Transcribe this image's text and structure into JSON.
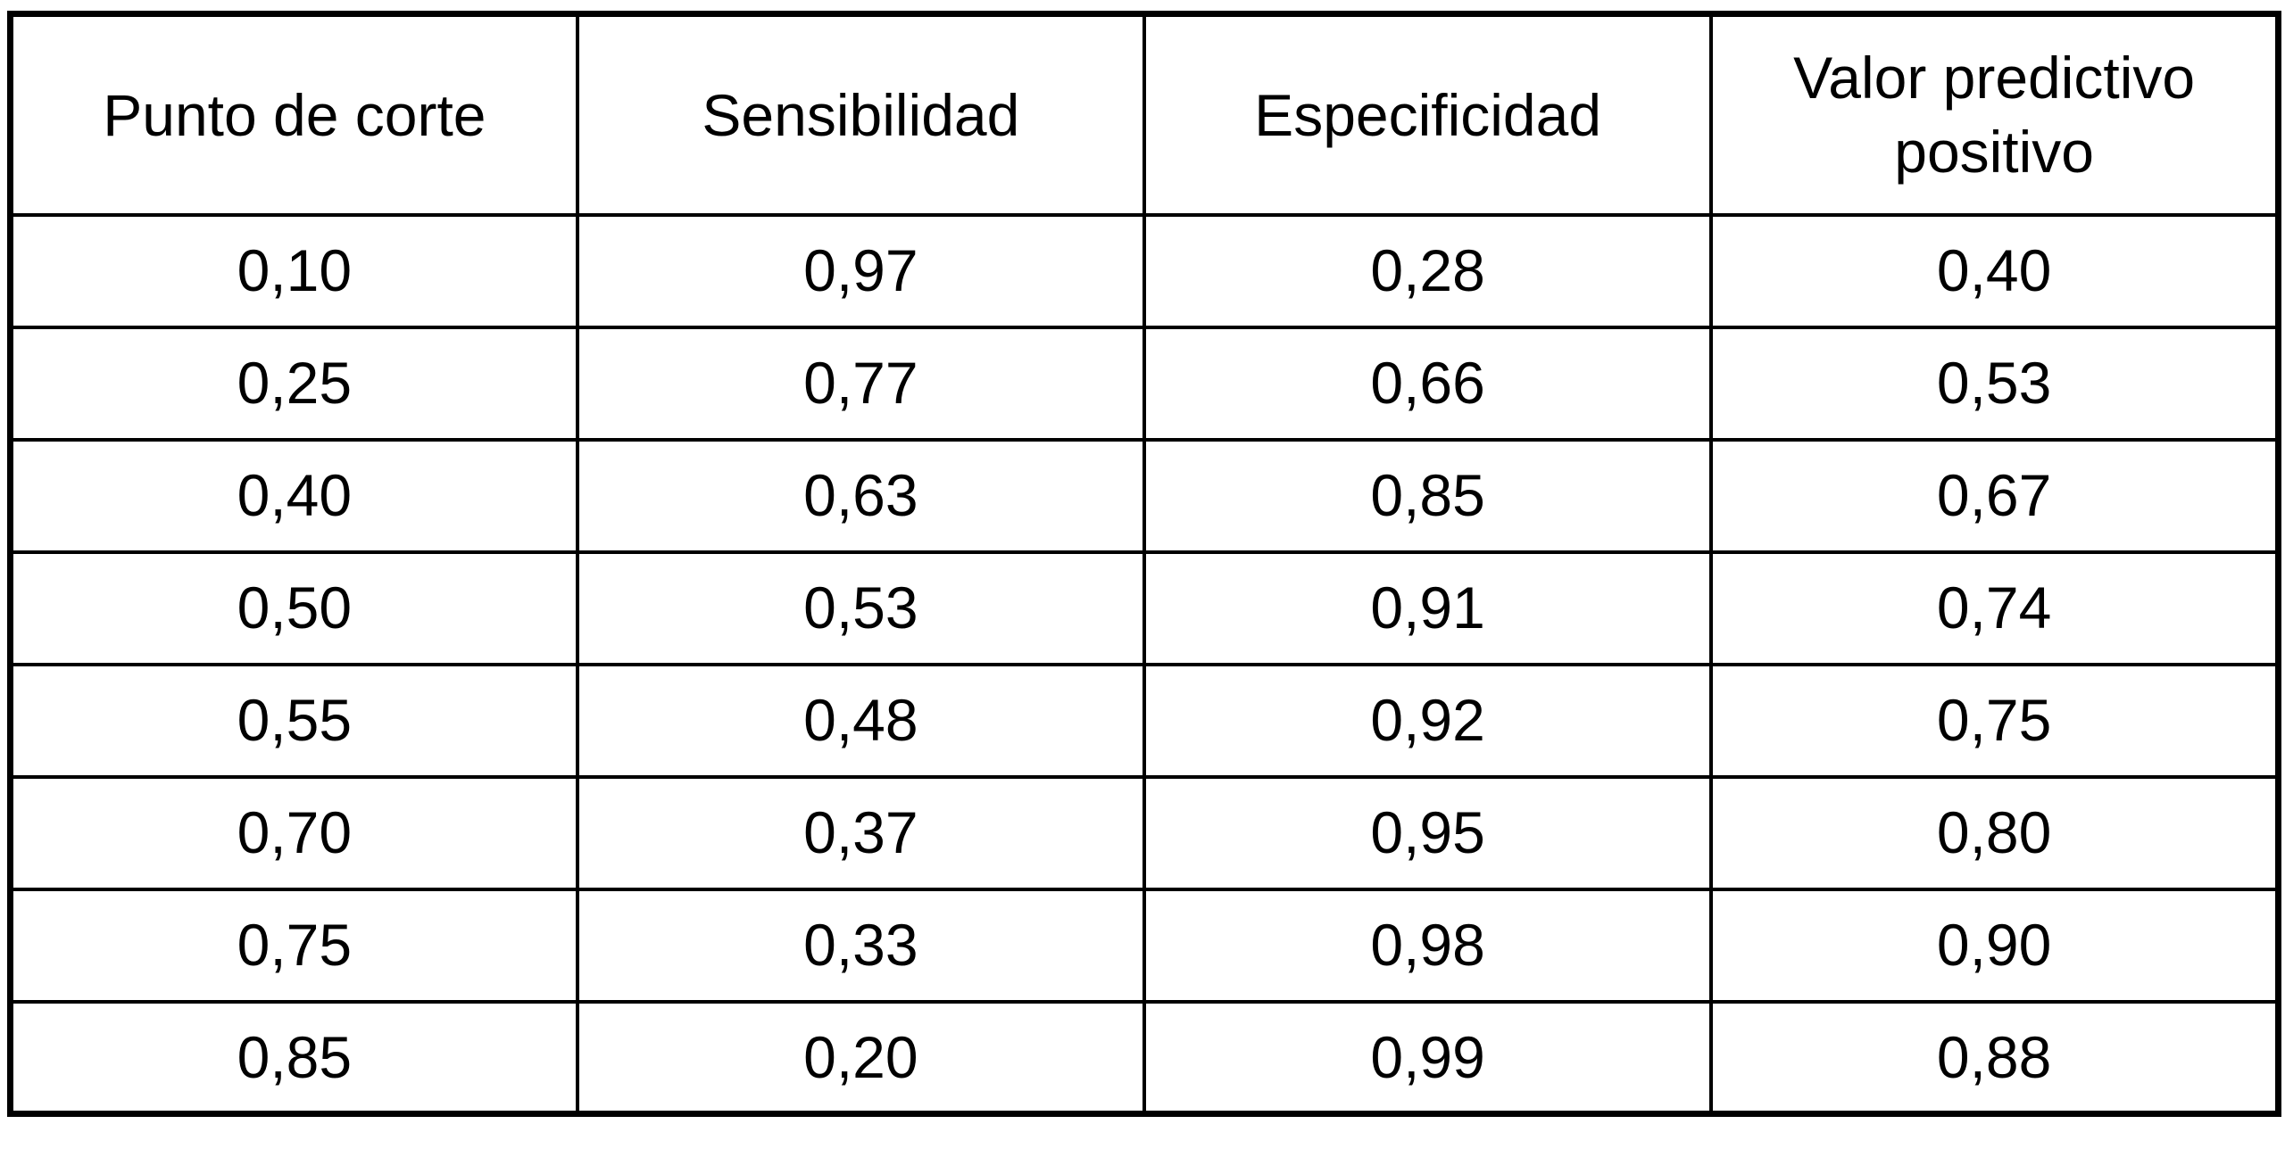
{
  "table": {
    "columns": [
      "Punto de corte",
      "Sensibilidad",
      "Especificidad",
      "Valor predictivo positivo"
    ],
    "rows": [
      [
        "0,10",
        "0,97",
        "0,28",
        "0,40"
      ],
      [
        "0,25",
        "0,77",
        "0,66",
        "0,53"
      ],
      [
        "0,40",
        "0,63",
        "0,85",
        "0,67"
      ],
      [
        "0,50",
        "0,53",
        "0,91",
        "0,74"
      ],
      [
        "0,55",
        "0,48",
        "0,92",
        "0,75"
      ],
      [
        "0,70",
        "0,37",
        "0,95",
        "0,80"
      ],
      [
        "0,75",
        "0,33",
        "0,98",
        "0,90"
      ],
      [
        "0,85",
        "0,20",
        "0,99",
        "0,88"
      ]
    ]
  },
  "chart_data": {
    "type": "table",
    "title": "",
    "columns": [
      "Punto de corte",
      "Sensibilidad",
      "Especificidad",
      "Valor predictivo positivo"
    ],
    "rows": [
      [
        0.1,
        0.97,
        0.28,
        0.4
      ],
      [
        0.25,
        0.77,
        0.66,
        0.53
      ],
      [
        0.4,
        0.63,
        0.85,
        0.67
      ],
      [
        0.5,
        0.53,
        0.91,
        0.74
      ],
      [
        0.55,
        0.48,
        0.92,
        0.75
      ],
      [
        0.7,
        0.37,
        0.95,
        0.8
      ],
      [
        0.75,
        0.33,
        0.98,
        0.9
      ],
      [
        0.85,
        0.2,
        0.99,
        0.88
      ]
    ],
    "decimal_separator": ","
  },
  "colors": {
    "border": "#000000",
    "background": "#ffffff",
    "text": "#000000"
  }
}
